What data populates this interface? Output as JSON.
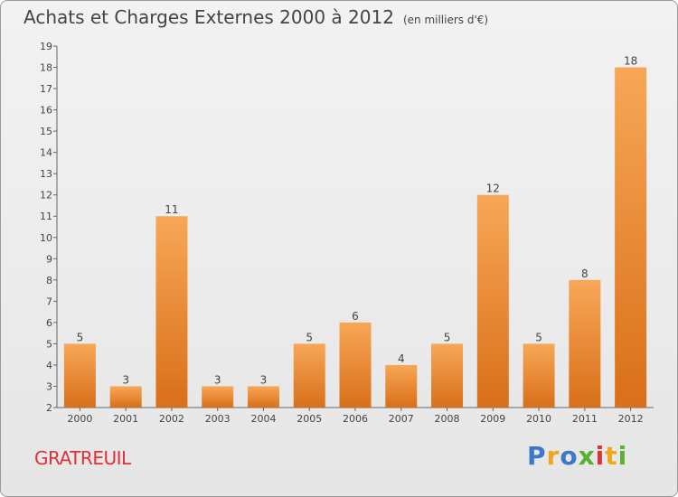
{
  "title": "Achats et Charges Externes 2000 à 2012",
  "unit": "(en milliers d'€)",
  "commune": "GRATREUIL",
  "logo": {
    "text": "Proxiti"
  },
  "colors": {
    "bar_top": "#f7a757",
    "bar_bottom": "#d96f19",
    "commune": "#e0303a",
    "background": "#ececec"
  },
  "chart_data": {
    "type": "bar",
    "title": "Achats et Charges Externes 2000 à 2012",
    "xlabel": "",
    "ylabel": "",
    "categories": [
      "2000",
      "2001",
      "2002",
      "2003",
      "2004",
      "2005",
      "2006",
      "2007",
      "2008",
      "2009",
      "2010",
      "2011",
      "2012"
    ],
    "values": [
      5,
      3,
      11,
      3,
      3,
      5,
      6,
      4,
      5,
      12,
      5,
      8,
      18
    ],
    "ylim": [
      2,
      19
    ],
    "yticks": [
      2,
      3,
      4,
      5,
      6,
      7,
      8,
      9,
      10,
      11,
      12,
      13,
      14,
      15,
      16,
      17,
      18,
      19
    ],
    "grid": false,
    "legend": "none"
  }
}
